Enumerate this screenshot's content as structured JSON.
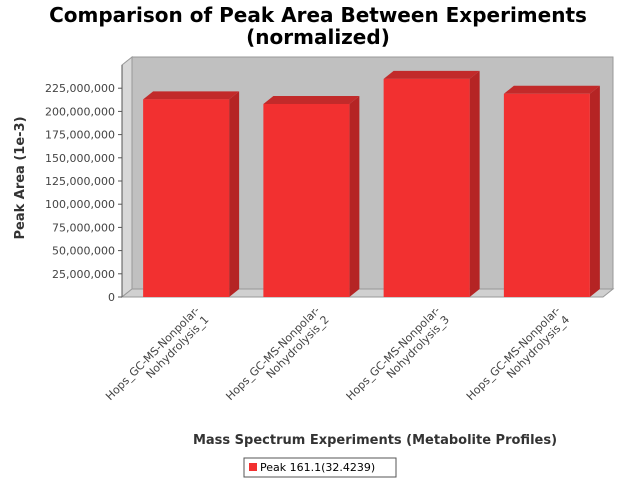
{
  "chart_data": {
    "type": "bar",
    "title_line1": "Comparison of Peak Area Between Experiments",
    "title_line2": "(normalized)",
    "xlabel": "Mass Spectrum Experiments (Metabolite Profiles)",
    "ylabel": "Peak Area (1e-3)",
    "categories": [
      "Hops_GC-MS-Nonpolar-Nohydrolysis_1",
      "Hops_GC-MS-Nonpolar-Nohydrolysis_2",
      "Hops_GC-MS-Nonpolar-Nohydrolysis_3",
      "Hops_GC-MS-Nonpolar-Nohydrolysis_4"
    ],
    "category_lines": [
      [
        "Hops_GC-MS-Nonpolar-",
        "Nohydrolysis_1"
      ],
      [
        "Hops_GC-MS-Nonpolar-",
        "Nohydrolysis_2"
      ],
      [
        "Hops_GC-MS-Nonpolar-",
        "Nohydrolysis_3"
      ],
      [
        "Hops_GC-MS-Nonpolar-",
        "Nohydrolysis_4"
      ]
    ],
    "series": [
      {
        "name": "Peak 161.1(32.4239)",
        "values": [
          213000000,
          208000000,
          235000000,
          219000000
        ]
      }
    ],
    "yticks": [
      {
        "value": 0,
        "label": "0"
      },
      {
        "value": 25000000,
        "label": "25,000,000"
      },
      {
        "value": 50000000,
        "label": "50,000,000"
      },
      {
        "value": 75000000,
        "label": "75,000,000"
      },
      {
        "value": 100000000,
        "label": "100,000,000"
      },
      {
        "value": 125000000,
        "label": "125,000,000"
      },
      {
        "value": 150000000,
        "label": "150,000,000"
      },
      {
        "value": 175000000,
        "label": "175,000,000"
      },
      {
        "value": 200000000,
        "label": "200,000,000"
      },
      {
        "value": 225000000,
        "label": "225,000,000"
      }
    ],
    "ylim": [
      0,
      250000000
    ],
    "grid": false,
    "legend": "bottom-center",
    "colors": {
      "bar_front": "#f23030",
      "bar_side": "#b52424",
      "bar_top": "#c22a2a",
      "plot_back": "#c0c0c0",
      "plot_floor": "#d0d0d0"
    }
  }
}
